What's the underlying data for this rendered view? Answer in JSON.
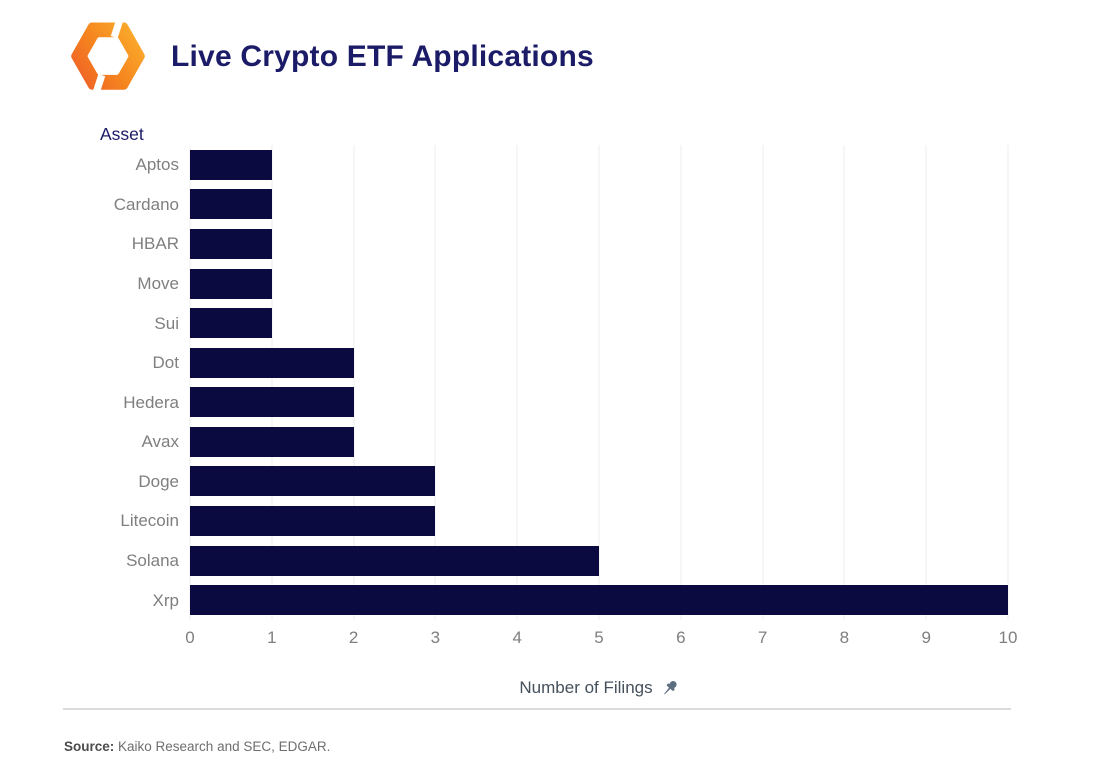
{
  "header": {
    "title": "Live Crypto ETF Applications",
    "logo": "kaiko-logo"
  },
  "chart_data": {
    "type": "bar",
    "orientation": "horizontal",
    "title": "Live Crypto ETF Applications",
    "ylabel": "Asset",
    "xlabel": "Number of Filings",
    "categories": [
      "Aptos",
      "Cardano",
      "HBAR",
      "Move",
      "Sui",
      "Dot",
      "Hedera",
      "Avax",
      "Doge",
      "Litecoin",
      "Solana",
      "Xrp"
    ],
    "values": [
      1,
      1,
      1,
      1,
      1,
      2,
      2,
      2,
      3,
      3,
      5,
      10
    ],
    "xlim": [
      0,
      10
    ],
    "xticks": [
      0,
      1,
      2,
      3,
      4,
      5,
      6,
      7,
      8,
      9,
      10
    ],
    "grid": "vertical",
    "legend": "none",
    "bar_color": "#0a0940",
    "gridline_color": "#ececec",
    "xaxis_icon": "pushpin-icon"
  },
  "footer": {
    "source_label": "Source:",
    "source_text": " Kaiko Research and SEC, EDGAR."
  },
  "colors": {
    "title_navy": "#1b1b68",
    "label_gray": "#7f7f7f",
    "axis_title_gray": "#44505c",
    "pin_slate": "#5d6e80",
    "logo_orange_dark": "#ef6226",
    "logo_orange_light": "#fcb42e"
  }
}
